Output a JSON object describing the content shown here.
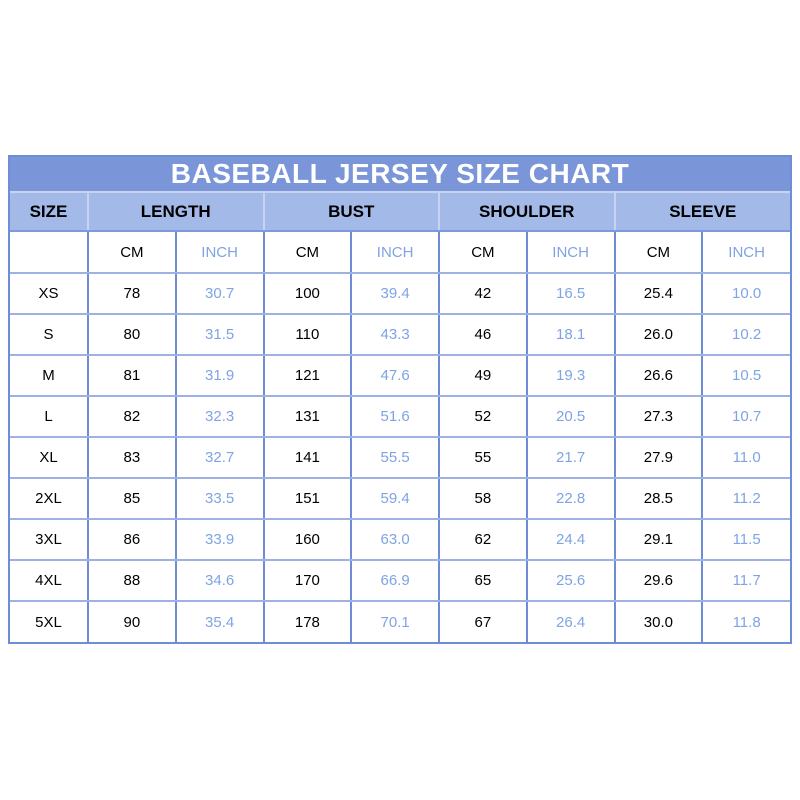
{
  "colors": {
    "title_background": "#7b95d9",
    "title_text": "#ffffff",
    "header_background": "#a3b9e8",
    "header_text": "#000000",
    "inch_text": "#7fa3e4",
    "cm_text": "#000000",
    "border_vertical": "#6d8dd6",
    "border_horizontal": "#9db1e2",
    "page_background": "#ffffff"
  },
  "chart_data": {
    "type": "table",
    "title": "BASEBALL JERSEY SIZE CHART",
    "column_groups": [
      "SIZE",
      "LENGTH",
      "BUST",
      "SHOULDER",
      "SLEEVE"
    ],
    "sub_columns": [
      "CM",
      "INCH"
    ],
    "rows": [
      [
        "XS",
        "78",
        "30.7",
        "100",
        "39.4",
        "42",
        "16.5",
        "25.4",
        "10.0"
      ],
      [
        "S",
        "80",
        "31.5",
        "110",
        "43.3",
        "46",
        "18.1",
        "26.0",
        "10.2"
      ],
      [
        "M",
        "81",
        "31.9",
        "121",
        "47.6",
        "49",
        "19.3",
        "26.6",
        "10.5"
      ],
      [
        "L",
        "82",
        "32.3",
        "131",
        "51.6",
        "52",
        "20.5",
        "27.3",
        "10.7"
      ],
      [
        "XL",
        "83",
        "32.7",
        "141",
        "55.5",
        "55",
        "21.7",
        "27.9",
        "11.0"
      ],
      [
        "2XL",
        "85",
        "33.5",
        "151",
        "59.4",
        "58",
        "22.8",
        "28.5",
        "11.2"
      ],
      [
        "3XL",
        "86",
        "33.9",
        "160",
        "63.0",
        "62",
        "24.4",
        "29.1",
        "11.5"
      ],
      [
        "4XL",
        "88",
        "34.6",
        "170",
        "66.9",
        "65",
        "25.6",
        "29.6",
        "11.7"
      ],
      [
        "5XL",
        "90",
        "35.4",
        "178",
        "70.1",
        "67",
        "26.4",
        "30.0",
        "11.8"
      ]
    ]
  }
}
